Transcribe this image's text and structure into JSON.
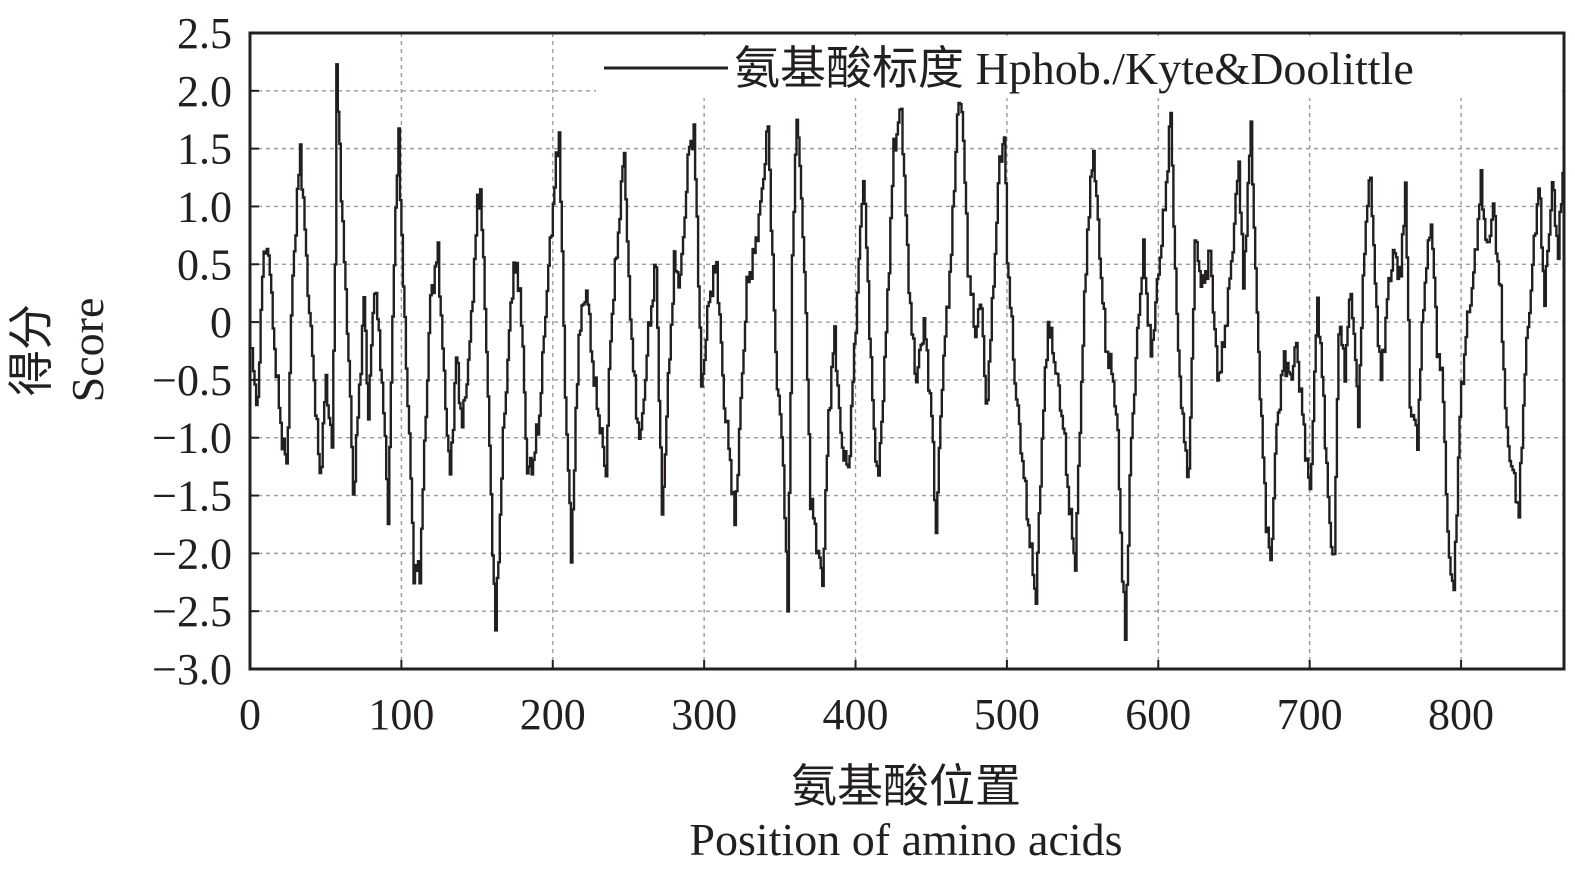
{
  "chart_data": {
    "type": "line",
    "xlabel_cn": "氨基酸位置",
    "xlabel_en": "Position of amino acids",
    "ylabel_cn": "得分",
    "ylabel_en": "Score",
    "legend": "氨基酸标度 Hphob./Kyte&Doolittle",
    "legend_position": "top-right",
    "grid": true,
    "xlim": [
      0,
      868
    ],
    "ylim": [
      -3.0,
      2.5
    ],
    "x_ticks": [
      0,
      100,
      200,
      300,
      400,
      500,
      600,
      700,
      800
    ],
    "x_tick_labels": [
      "0",
      "100",
      "200",
      "300",
      "400",
      "500",
      "600",
      "700",
      "800"
    ],
    "y_ticks": [
      2.5,
      2.0,
      1.5,
      1.0,
      0.5,
      0,
      -0.5,
      -1.0,
      -1.5,
      -2.0,
      -2.5,
      -3.0
    ],
    "y_tick_labels": [
      "2.5",
      "2.0",
      "1.5",
      "1.0",
      "0.5",
      "0",
      "−0.5",
      "−1.0",
      "−1.5",
      "−2.0",
      "−2.5",
      "−3.0"
    ],
    "series": [
      {
        "name": "氨基酸标度 Hphob./Kyte&Doolittle",
        "color": "#231f20",
        "anchors": [
          [
            1,
            -0.3
          ],
          [
            5,
            -0.75
          ],
          [
            8,
            0.5
          ],
          [
            12,
            0.65
          ],
          [
            15,
            -0.05
          ],
          [
            20,
            -0.9
          ],
          [
            24,
            -1.25
          ],
          [
            28,
            0.4
          ],
          [
            33,
            1.5
          ],
          [
            38,
            0.3
          ],
          [
            42,
            -0.5
          ],
          [
            46,
            -1.35
          ],
          [
            50,
            -0.5
          ],
          [
            54,
            -1.1
          ],
          [
            56,
            0.6
          ],
          [
            57,
            2.15
          ],
          [
            62,
            0.5
          ],
          [
            65,
            -0.3
          ],
          [
            68,
            -1.5
          ],
          [
            72,
            -0.6
          ],
          [
            75,
            0.2
          ],
          [
            78,
            -0.8
          ],
          [
            82,
            0.35
          ],
          [
            86,
            -0.3
          ],
          [
            90,
            -1.3
          ],
          [
            91,
            -1.7
          ],
          [
            95,
            0.6
          ],
          [
            98,
            1.6
          ],
          [
            101,
            0.3
          ],
          [
            105,
            -1.0
          ],
          [
            108,
            -2.15
          ],
          [
            112,
            -2.15
          ],
          [
            115,
            -1.1
          ],
          [
            119,
            0.2
          ],
          [
            124,
            0.6
          ],
          [
            128,
            -0.5
          ],
          [
            132,
            -1.35
          ],
          [
            136,
            -0.3
          ],
          [
            140,
            -0.9
          ],
          [
            145,
            -0.2
          ],
          [
            150,
            1.0
          ],
          [
            152,
            1.15
          ],
          [
            156,
            -0.2
          ],
          [
            159,
            -1.55
          ],
          [
            162,
            -2.65
          ],
          [
            167,
            -1.0
          ],
          [
            171,
            -0.1
          ],
          [
            174,
            0.5
          ],
          [
            178,
            0.3
          ],
          [
            181,
            -0.6
          ],
          [
            183,
            -1.3
          ],
          [
            187,
            -1.2
          ],
          [
            191,
            -0.8
          ],
          [
            195,
            0.1
          ],
          [
            201,
            1.2
          ],
          [
            204,
            1.65
          ],
          [
            208,
            -0.6
          ],
          [
            212,
            -2.0
          ],
          [
            217,
            -0.1
          ],
          [
            222,
            0.3
          ],
          [
            227,
            -0.5
          ],
          [
            230,
            -0.8
          ],
          [
            235,
            -1.3
          ],
          [
            238,
            -0.1
          ],
          [
            242,
            0.6
          ],
          [
            247,
            1.5
          ],
          [
            250,
            0.3
          ],
          [
            255,
            -0.8
          ],
          [
            258,
            -1.0
          ],
          [
            263,
            -0.1
          ],
          [
            268,
            0.5
          ],
          [
            272,
            -1.7
          ],
          [
            275,
            -0.8
          ],
          [
            280,
            0.5
          ],
          [
            284,
            0.35
          ],
          [
            290,
            1.55
          ],
          [
            293,
            1.6
          ],
          [
            295,
            0.9
          ],
          [
            298,
            -0.6
          ],
          [
            303,
            0.2
          ],
          [
            308,
            0.5
          ],
          [
            313,
            -0.7
          ],
          [
            317,
            -1.2
          ],
          [
            320,
            -1.75
          ],
          [
            324,
            -0.7
          ],
          [
            328,
            0.3
          ],
          [
            333,
            0.6
          ],
          [
            337,
            1.0
          ],
          [
            342,
            1.7
          ],
          [
            347,
            -0.3
          ],
          [
            352,
            -1.2
          ],
          [
            355,
            -2.5
          ],
          [
            358,
            0.5
          ],
          [
            361,
            1.85
          ],
          [
            366,
            0.5
          ],
          [
            370,
            -1.5
          ],
          [
            374,
            -1.9
          ],
          [
            378,
            -2.25
          ],
          [
            382,
            -0.8
          ],
          [
            386,
            -0.1
          ],
          [
            390,
            -1.0
          ],
          [
            395,
            -1.3
          ],
          [
            400,
            0.0
          ],
          [
            405,
            1.3
          ],
          [
            408,
            0.3
          ],
          [
            412,
            -1.0
          ],
          [
            415,
            -1.35
          ],
          [
            420,
            -0.1
          ],
          [
            425,
            1.5
          ],
          [
            430,
            1.85
          ],
          [
            434,
            0.6
          ],
          [
            437,
            -0.1
          ],
          [
            440,
            -0.5
          ],
          [
            445,
            0.0
          ],
          [
            450,
            -0.8
          ],
          [
            453,
            -1.8
          ],
          [
            457,
            -0.5
          ],
          [
            463,
            0.6
          ],
          [
            467,
            1.8
          ],
          [
            470,
            1.9
          ],
          [
            474,
            0.5
          ],
          [
            479,
            -0.1
          ],
          [
            483,
            0.2
          ],
          [
            486,
            -0.8
          ],
          [
            490,
            0.1
          ],
          [
            495,
            1.4
          ],
          [
            498,
            1.6
          ],
          [
            500,
            0.6
          ],
          [
            505,
            -0.5
          ],
          [
            510,
            -1.2
          ],
          [
            515,
            -1.9
          ],
          [
            519,
            -2.4
          ],
          [
            523,
            -1.0
          ],
          [
            527,
            0.0
          ],
          [
            532,
            -0.4
          ],
          [
            537,
            -0.9
          ],
          [
            541,
            -1.6
          ],
          [
            545,
            -2.1
          ],
          [
            549,
            -0.5
          ],
          [
            553,
            0.8
          ],
          [
            557,
            1.5
          ],
          [
            561,
            0.6
          ],
          [
            565,
            -0.2
          ],
          [
            570,
            -0.5
          ],
          [
            573,
            -1.0
          ],
          [
            576,
            -2.2
          ],
          [
            578,
            -2.7
          ],
          [
            582,
            -1.0
          ],
          [
            587,
            0.1
          ],
          [
            590,
            0.6
          ],
          [
            595,
            -0.3
          ],
          [
            599,
            0.3
          ],
          [
            604,
            1.0
          ],
          [
            608,
            1.8
          ],
          [
            612,
            0.0
          ],
          [
            616,
            -0.9
          ],
          [
            620,
            -1.35
          ],
          [
            624,
            0.7
          ],
          [
            629,
            0.3
          ],
          [
            634,
            0.6
          ],
          [
            639,
            -0.5
          ],
          [
            643,
            -0.2
          ],
          [
            648,
            0.5
          ],
          [
            653,
            1.4
          ],
          [
            656,
            0.3
          ],
          [
            661,
            1.7
          ],
          [
            664,
            0.4
          ],
          [
            668,
            -0.9
          ],
          [
            671,
            -1.7
          ],
          [
            674,
            -2.1
          ],
          [
            678,
            -0.9
          ],
          [
            683,
            -0.3
          ],
          [
            687,
            -0.5
          ],
          [
            691,
            -0.2
          ],
          [
            695,
            -0.8
          ],
          [
            700,
            -1.5
          ],
          [
            705,
            0.2
          ],
          [
            709,
            -0.7
          ],
          [
            713,
            -1.8
          ],
          [
            716,
            -2.05
          ],
          [
            719,
            0.0
          ],
          [
            723,
            -0.4
          ],
          [
            727,
            0.3
          ],
          [
            732,
            -0.8
          ],
          [
            736,
            0.7
          ],
          [
            740,
            1.3
          ],
          [
            743,
            0.3
          ],
          [
            747,
            -0.5
          ],
          [
            751,
            0.2
          ],
          [
            755,
            0.6
          ],
          [
            760,
            0.4
          ],
          [
            763,
            1.2
          ],
          [
            766,
            -0.7
          ],
          [
            771,
            -1.0
          ],
          [
            775,
            0.2
          ],
          [
            780,
            0.9
          ],
          [
            784,
            -0.2
          ],
          [
            788,
            -0.6
          ],
          [
            791,
            -1.9
          ],
          [
            795,
            -2.35
          ],
          [
            799,
            -0.8
          ],
          [
            803,
            -0.1
          ],
          [
            808,
            0.4
          ],
          [
            813,
            1.2
          ],
          [
            817,
            0.6
          ],
          [
            821,
            1.0
          ],
          [
            826,
            0.2
          ],
          [
            830,
            -1.0
          ],
          [
            834,
            -1.3
          ],
          [
            838,
            -1.65
          ],
          [
            842,
            -0.4
          ],
          [
            846,
            0.3
          ],
          [
            851,
            1.2
          ],
          [
            855,
            0.2
          ],
          [
            860,
            1.2
          ],
          [
            864,
            0.6
          ],
          [
            867,
            1.3
          ]
        ]
      }
    ]
  }
}
